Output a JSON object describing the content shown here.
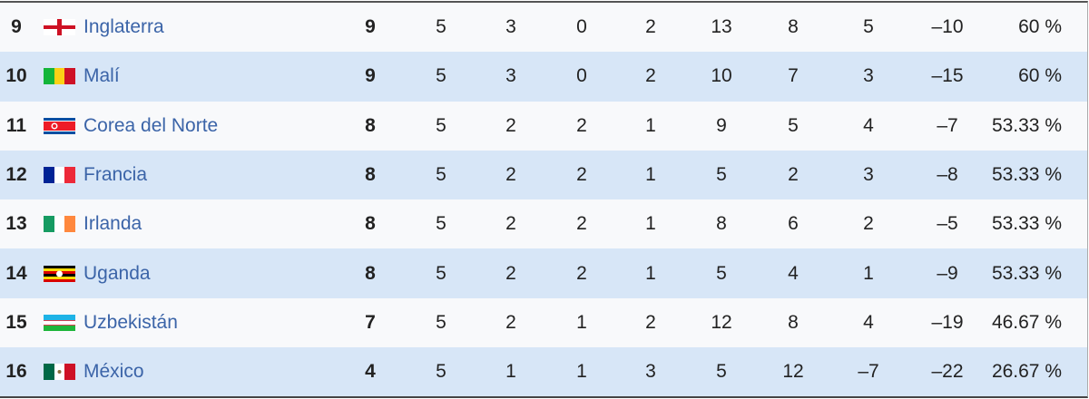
{
  "rows": [
    {
      "rank": "9",
      "country": "Inglaterra",
      "flag": "england",
      "pts": "9",
      "pj": "5",
      "g": "3",
      "e": "0",
      "p": "2",
      "gf": "13",
      "gc": "8",
      "dif": "5",
      "col9": "–10",
      "pct": "60 %"
    },
    {
      "rank": "10",
      "country": "Malí",
      "flag": "mali",
      "pts": "9",
      "pj": "5",
      "g": "3",
      "e": "0",
      "p": "2",
      "gf": "10",
      "gc": "7",
      "dif": "3",
      "col9": "–15",
      "pct": "60 %"
    },
    {
      "rank": "11",
      "country": "Corea del Norte",
      "flag": "north-korea",
      "pts": "8",
      "pj": "5",
      "g": "2",
      "e": "2",
      "p": "1",
      "gf": "9",
      "gc": "5",
      "dif": "4",
      "col9": "–7",
      "pct": "53.33 %"
    },
    {
      "rank": "12",
      "country": "Francia",
      "flag": "france",
      "pts": "8",
      "pj": "5",
      "g": "2",
      "e": "2",
      "p": "1",
      "gf": "5",
      "gc": "2",
      "dif": "3",
      "col9": "–8",
      "pct": "53.33 %"
    },
    {
      "rank": "13",
      "country": "Irlanda",
      "flag": "ireland",
      "pts": "8",
      "pj": "5",
      "g": "2",
      "e": "2",
      "p": "1",
      "gf": "8",
      "gc": "6",
      "dif": "2",
      "col9": "–5",
      "pct": "53.33 %"
    },
    {
      "rank": "14",
      "country": "Uganda",
      "flag": "uganda",
      "pts": "8",
      "pj": "5",
      "g": "2",
      "e": "2",
      "p": "1",
      "gf": "5",
      "gc": "4",
      "dif": "1",
      "col9": "–9",
      "pct": "53.33 %"
    },
    {
      "rank": "15",
      "country": "Uzbekistán",
      "flag": "uzbekistan",
      "pts": "7",
      "pj": "5",
      "g": "2",
      "e": "1",
      "p": "2",
      "gf": "12",
      "gc": "8",
      "dif": "4",
      "col9": "–19",
      "pct": "46.67 %"
    },
    {
      "rank": "16",
      "country": "México",
      "flag": "mexico",
      "pts": "4",
      "pj": "5",
      "g": "1",
      "e": "1",
      "p": "3",
      "gf": "5",
      "gc": "12",
      "dif": "–7",
      "col9": "–22",
      "pct": "26.67 %"
    }
  ],
  "colors": {
    "link": "#3b64a8",
    "row_odd": "#f8f9fb",
    "row_even": "#d7e6f7"
  }
}
